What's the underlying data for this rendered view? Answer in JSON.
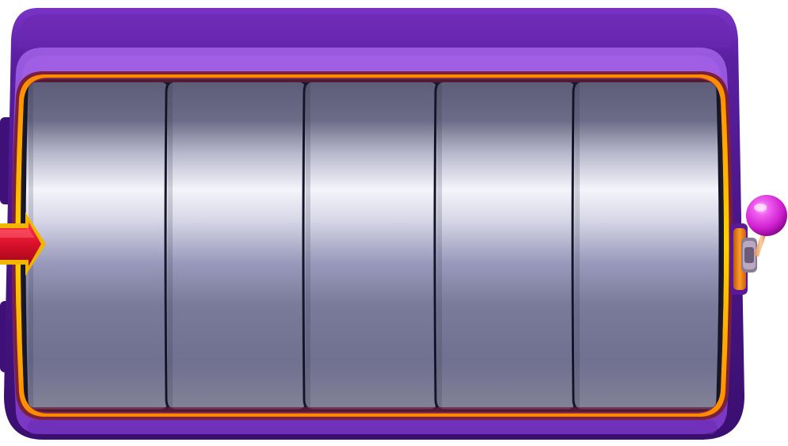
{
  "slot_machine": {
    "reel_count": 5,
    "reels": [
      {
        "name": "reel-1",
        "symbols": []
      },
      {
        "name": "reel-2",
        "symbols": []
      },
      {
        "name": "reel-3",
        "symbols": []
      },
      {
        "name": "reel-4",
        "symbols": []
      },
      {
        "name": "reel-5",
        "symbols": []
      }
    ],
    "payline_arrow": {
      "icon": "right-arrow-icon",
      "side": "left"
    },
    "lever": {
      "icon": "lever-icon",
      "side": "right",
      "knob_color": "#e633e6"
    }
  },
  "colors": {
    "cabinet_dark": "#4a1688",
    "cabinet_mid": "#6a2bb8",
    "cabinet_light": "#8a4ad6",
    "frame_gold": "#f2a80f",
    "frame_maroon": "#7a1f3c",
    "reel_dark": "#5c5c78",
    "reel_light": "#f2f2fa",
    "arrow_red": "#d9102a",
    "arrow_gold": "#f2b600",
    "lever_knob": "#e633e6"
  }
}
